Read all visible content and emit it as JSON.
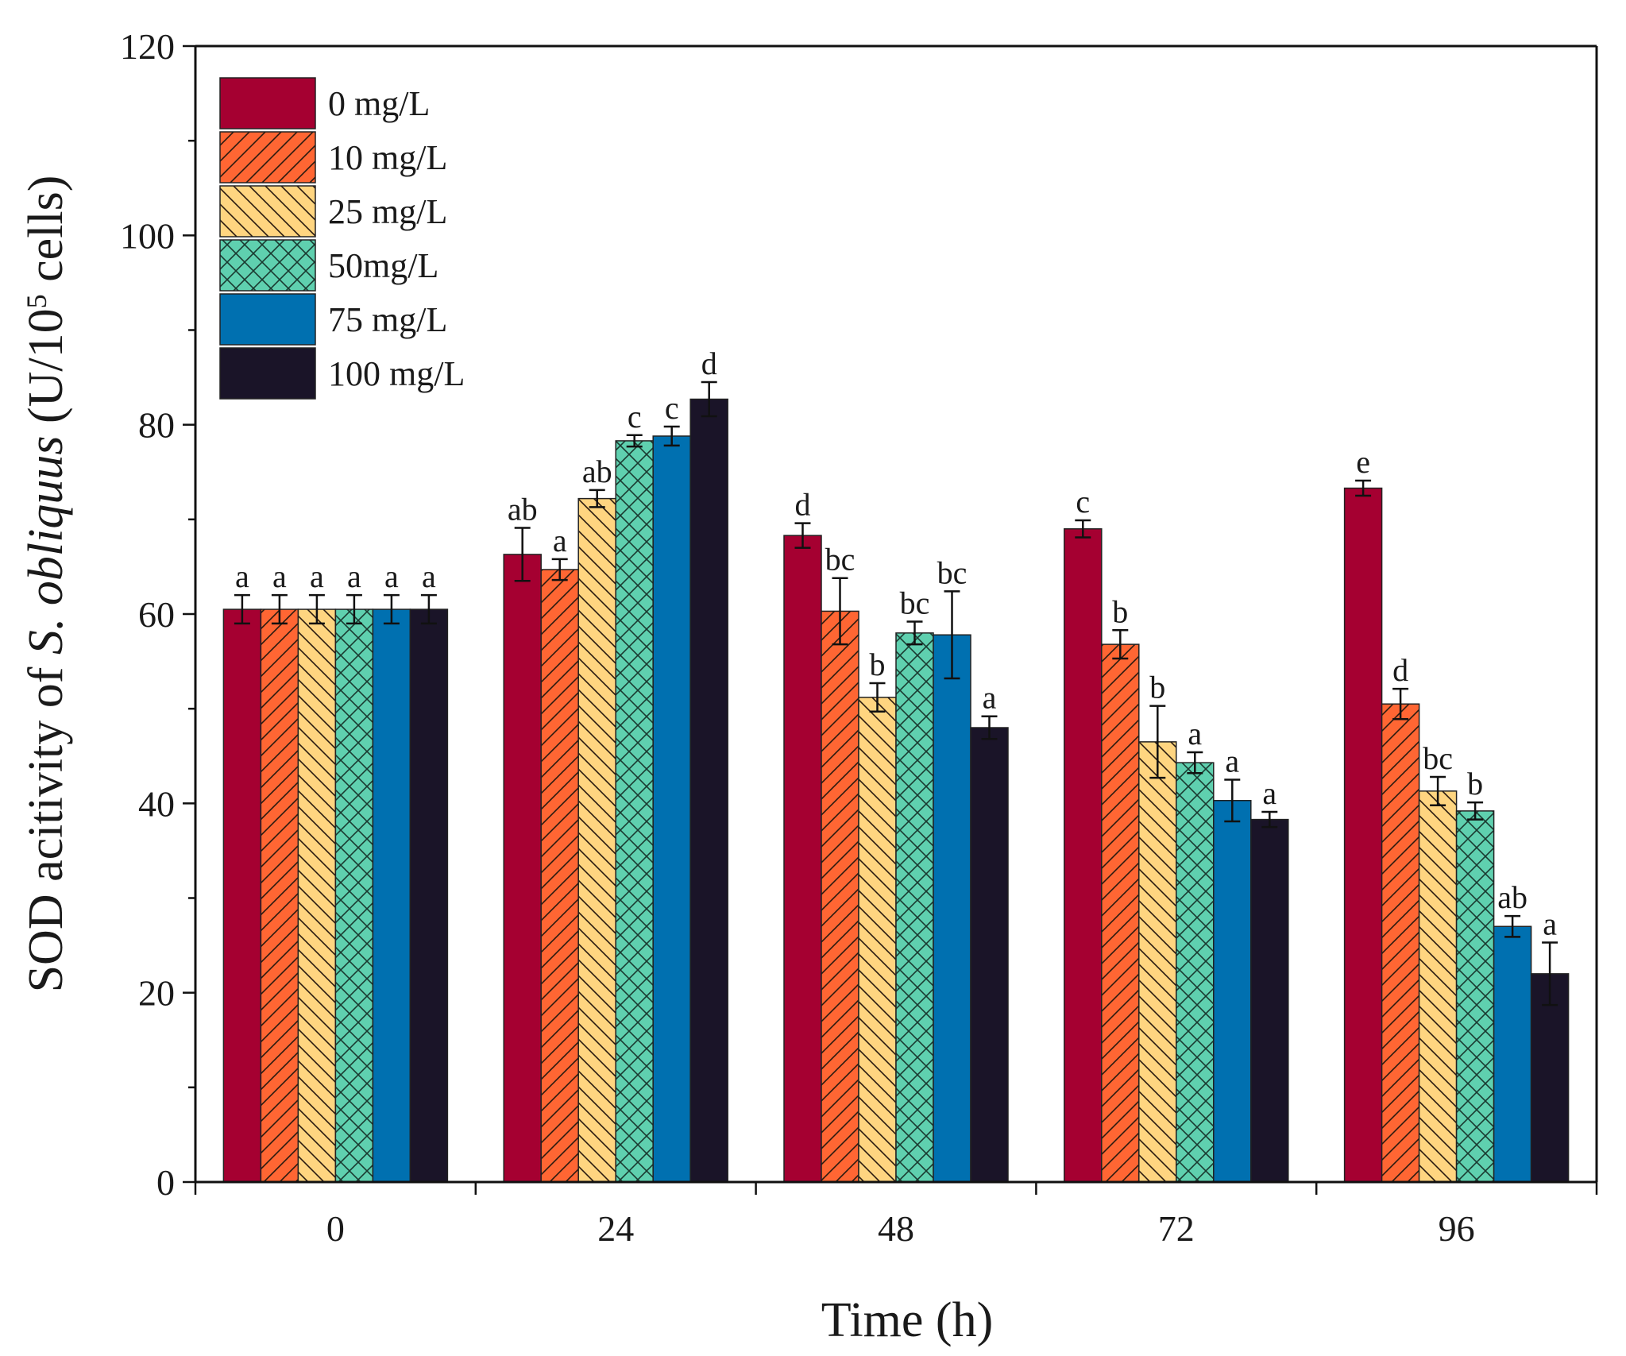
{
  "chart_data": {
    "type": "bar",
    "title": "",
    "xlabel": "Time (h)",
    "ylabel": {
      "prefix": "SOD acitivity of ",
      "species": "S. obliquus",
      "unit_start": " (U/10",
      "unit_exp": "5",
      "unit_end": " cells)"
    },
    "ylim": [
      0,
      120
    ],
    "yticks": [
      "0",
      "20",
      "40",
      "60",
      "80",
      "100",
      "120"
    ],
    "categories": [
      "0",
      "24",
      "48",
      "72",
      "96"
    ],
    "legend_position": "top-left",
    "series": [
      {
        "name": "0 mg/L",
        "color": "#A50031",
        "pattern": "solid",
        "values": [
          60.5,
          66.3,
          68.3,
          69.0,
          73.3
        ],
        "errors": [
          1.5,
          2.8,
          1.3,
          0.9,
          0.8
        ],
        "letters": [
          "a",
          "ab",
          "d",
          "c",
          "e"
        ]
      },
      {
        "name": "10 mg/L",
        "color": "#FF6633",
        "pattern": "forward-hatch",
        "values": [
          60.5,
          64.7,
          60.3,
          56.8,
          50.5
        ],
        "errors": [
          1.5,
          1.1,
          3.5,
          1.5,
          1.6
        ],
        "letters": [
          "a",
          "a",
          "bc",
          "b",
          "d"
        ]
      },
      {
        "name": "25 mg/L",
        "color": "#FFD580",
        "pattern": "backward-hatch",
        "values": [
          60.5,
          72.2,
          51.2,
          46.5,
          41.3
        ],
        "errors": [
          1.5,
          0.9,
          1.5,
          3.8,
          1.5
        ],
        "letters": [
          "a",
          "ab",
          "b",
          "b",
          "bc"
        ]
      },
      {
        "name": "50mg/L",
        "color": "#5FD0AF",
        "pattern": "crosshatch",
        "values": [
          60.5,
          78.3,
          58.0,
          44.3,
          39.2
        ],
        "errors": [
          1.5,
          0.6,
          1.2,
          1.1,
          0.9
        ],
        "letters": [
          "a",
          "c",
          "bc",
          "a",
          "b"
        ]
      },
      {
        "name": "75 mg/L",
        "color": "#0070B0",
        "pattern": "solid",
        "values": [
          60.5,
          78.8,
          57.8,
          40.3,
          27.0
        ],
        "errors": [
          1.5,
          1.0,
          4.6,
          2.2,
          1.1
        ],
        "letters": [
          "a",
          "c",
          "bc",
          "a",
          "ab"
        ]
      },
      {
        "name": "100 mg/L",
        "color": "#1A1428",
        "pattern": "solid",
        "values": [
          60.5,
          82.7,
          48.0,
          38.3,
          22.0
        ],
        "errors": [
          1.5,
          1.8,
          1.2,
          0.8,
          3.3
        ],
        "letters": [
          "a",
          "d",
          "a",
          "a",
          "a"
        ]
      }
    ]
  }
}
